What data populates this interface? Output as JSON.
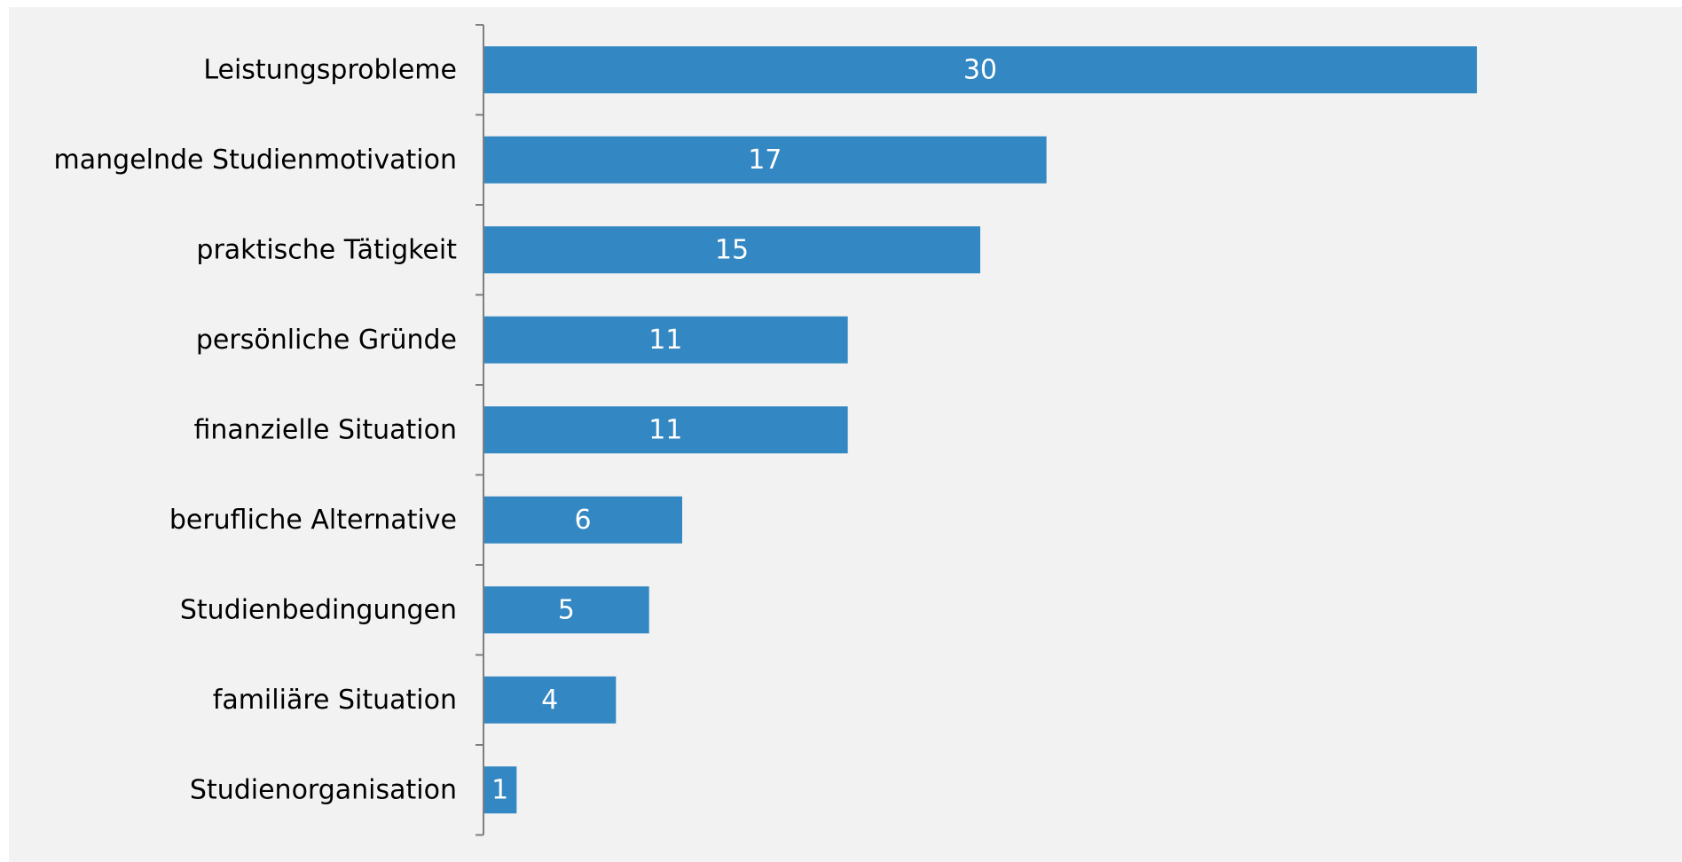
{
  "chart_data": {
    "type": "bar",
    "orientation": "horizontal",
    "categories": [
      "Leistungsprobleme",
      "mangelnde Studienmotivation",
      "praktische Tätigkeit",
      "persönliche Gründe",
      "finanzielle Situation",
      "berufliche Alternative",
      "Studienbedingungen",
      "familiäre Situation",
      "Studienorganisation"
    ],
    "values": [
      30,
      17,
      15,
      11,
      11,
      6,
      5,
      4,
      1
    ],
    "data_labels": [
      "30",
      "17",
      "15",
      "11",
      "11",
      "6",
      "5",
      "4",
      "1"
    ],
    "title": "",
    "xlabel": "",
    "ylabel": "",
    "xlim": [
      0,
      36
    ],
    "grid": false,
    "legend": "none",
    "colors": {
      "bar": "#3387c2",
      "background": "#f2f2f2",
      "axis": "#7f7f7f"
    }
  }
}
